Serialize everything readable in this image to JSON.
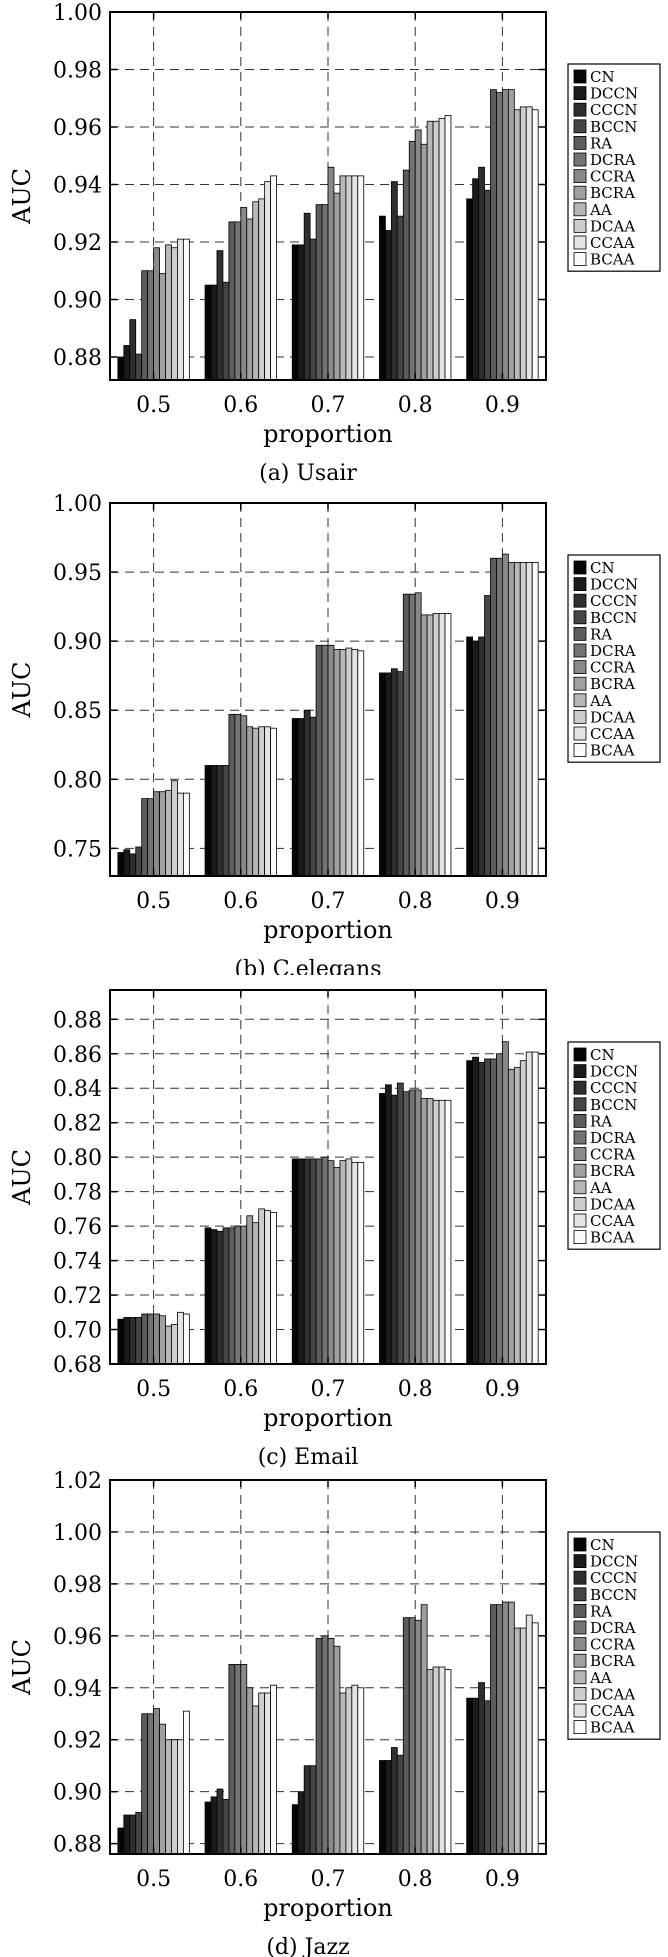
{
  "colors": {
    "series": [
      "#050505",
      "#1b1b1b",
      "#2f2f2f",
      "#454545",
      "#5c5c5c",
      "#737373",
      "#898989",
      "#a0a0a0",
      "#b7b7b7",
      "#cdcdcd",
      "#e4e4e4",
      "#fbfbfb"
    ],
    "axis": "#000000",
    "grid": "#333333"
  },
  "chart_data": [
    {
      "type": "bar",
      "caption": "(a) Usair",
      "xlabel": "proportion",
      "ylabel": "AUC",
      "categories": [
        "0.5",
        "0.6",
        "0.7",
        "0.8",
        "0.9"
      ],
      "ylim": [
        0.872,
        1.0
      ],
      "yticks": [
        0.88,
        0.9,
        0.92,
        0.94,
        0.96,
        0.98,
        1.0
      ],
      "ytick_labels": [
        "0.88",
        "0.90",
        "0.92",
        "0.94",
        "0.96",
        "0.98",
        "1.00"
      ],
      "grid": true,
      "legend_position": "right",
      "series": [
        {
          "name": "CN",
          "values": [
            0.88,
            0.905,
            0.919,
            0.929,
            0.935
          ]
        },
        {
          "name": "DCCN",
          "values": [
            0.884,
            0.905,
            0.919,
            0.924,
            0.942
          ]
        },
        {
          "name": "CCCN",
          "values": [
            0.893,
            0.917,
            0.93,
            0.941,
            0.946
          ]
        },
        {
          "name": "BCCN",
          "values": [
            0.881,
            0.906,
            0.921,
            0.929,
            0.938
          ]
        },
        {
          "name": "RA",
          "values": [
            0.91,
            0.927,
            0.933,
            0.945,
            0.973
          ]
        },
        {
          "name": "DCRA",
          "values": [
            0.91,
            0.927,
            0.933,
            0.955,
            0.972
          ]
        },
        {
          "name": "CCRA",
          "values": [
            0.918,
            0.932,
            0.946,
            0.959,
            0.973
          ]
        },
        {
          "name": "BCRA",
          "values": [
            0.909,
            0.928,
            0.937,
            0.954,
            0.973
          ]
        },
        {
          "name": "AA",
          "values": [
            0.919,
            0.934,
            0.943,
            0.962,
            0.966
          ]
        },
        {
          "name": "DCAA",
          "values": [
            0.918,
            0.935,
            0.943,
            0.962,
            0.967
          ]
        },
        {
          "name": "CCAA",
          "values": [
            0.921,
            0.941,
            0.943,
            0.963,
            0.967
          ]
        },
        {
          "name": "BCAA",
          "values": [
            0.921,
            0.943,
            0.943,
            0.964,
            0.966
          ]
        }
      ]
    },
    {
      "type": "bar",
      "caption": "(b) C.elegans",
      "xlabel": "proportion",
      "ylabel": "AUC",
      "categories": [
        "0.5",
        "0.6",
        "0.7",
        "0.8",
        "0.9"
      ],
      "ylim": [
        0.73,
        1.0
      ],
      "yticks": [
        0.75,
        0.8,
        0.85,
        0.9,
        0.95,
        1.0
      ],
      "ytick_labels": [
        "0.75",
        "0.80",
        "0.85",
        "0.90",
        "0.95",
        "1.00"
      ],
      "grid": true,
      "legend_position": "right",
      "series": [
        {
          "name": "CN",
          "values": [
            0.747,
            0.81,
            0.844,
            0.877,
            0.903
          ]
        },
        {
          "name": "DCCN",
          "values": [
            0.749,
            0.81,
            0.844,
            0.877,
            0.9
          ]
        },
        {
          "name": "CCCN",
          "values": [
            0.746,
            0.81,
            0.85,
            0.88,
            0.903
          ]
        },
        {
          "name": "BCCN",
          "values": [
            0.751,
            0.81,
            0.845,
            0.878,
            0.933
          ]
        },
        {
          "name": "RA",
          "values": [
            0.786,
            0.847,
            0.897,
            0.934,
            0.96
          ]
        },
        {
          "name": "DCRA",
          "values": [
            0.786,
            0.847,
            0.897,
            0.934,
            0.96
          ]
        },
        {
          "name": "CCRA",
          "values": [
            0.791,
            0.846,
            0.897,
            0.935,
            0.963
          ]
        },
        {
          "name": "BCRA",
          "values": [
            0.791,
            0.838,
            0.894,
            0.919,
            0.957
          ]
        },
        {
          "name": "AA",
          "values": [
            0.792,
            0.837,
            0.894,
            0.919,
            0.957
          ]
        },
        {
          "name": "DCAA",
          "values": [
            0.799,
            0.838,
            0.895,
            0.92,
            0.957
          ]
        },
        {
          "name": "CCAA",
          "values": [
            0.79,
            0.838,
            0.894,
            0.92,
            0.957
          ]
        },
        {
          "name": "BCAA",
          "values": [
            0.79,
            0.837,
            0.893,
            0.92,
            0.957
          ]
        }
      ]
    },
    {
      "type": "bar",
      "caption": "(c) Email",
      "xlabel": "proportion",
      "ylabel": "AUC",
      "categories": [
        "0.5",
        "0.6",
        "0.7",
        "0.8",
        "0.9"
      ],
      "ylim": [
        0.68,
        0.897
      ],
      "yticks": [
        0.68,
        0.7,
        0.72,
        0.74,
        0.76,
        0.78,
        0.8,
        0.82,
        0.84,
        0.86,
        0.88
      ],
      "ytick_labels": [
        "0.68",
        "0.70",
        "0.72",
        "0.74",
        "0.76",
        "0.78",
        "0.80",
        "0.82",
        "0.84",
        "0.86",
        "0.88"
      ],
      "grid": true,
      "legend_position": "right",
      "series": [
        {
          "name": "CN",
          "values": [
            0.706,
            0.759,
            0.799,
            0.837,
            0.856
          ]
        },
        {
          "name": "DCCN",
          "values": [
            0.707,
            0.758,
            0.799,
            0.842,
            0.858
          ]
        },
        {
          "name": "CCCN",
          "values": [
            0.707,
            0.757,
            0.799,
            0.836,
            0.855
          ]
        },
        {
          "name": "BCCN",
          "values": [
            0.707,
            0.759,
            0.799,
            0.843,
            0.857
          ]
        },
        {
          "name": "RA",
          "values": [
            0.709,
            0.759,
            0.799,
            0.838,
            0.857
          ]
        },
        {
          "name": "DCRA",
          "values": [
            0.709,
            0.76,
            0.8,
            0.839,
            0.86
          ]
        },
        {
          "name": "CCRA",
          "values": [
            0.709,
            0.76,
            0.798,
            0.839,
            0.867
          ]
        },
        {
          "name": "BCRA",
          "values": [
            0.708,
            0.766,
            0.794,
            0.834,
            0.851
          ]
        },
        {
          "name": "AA",
          "values": [
            0.702,
            0.762,
            0.798,
            0.834,
            0.852
          ]
        },
        {
          "name": "DCAA",
          "values": [
            0.703,
            0.77,
            0.799,
            0.833,
            0.856
          ]
        },
        {
          "name": "CCAA",
          "values": [
            0.71,
            0.769,
            0.797,
            0.833,
            0.861
          ]
        },
        {
          "name": "BCAA",
          "values": [
            0.709,
            0.768,
            0.797,
            0.833,
            0.861
          ]
        }
      ]
    },
    {
      "type": "bar",
      "caption": "(d) Jazz",
      "xlabel": "proportion",
      "ylabel": "AUC",
      "categories": [
        "0.5",
        "0.6",
        "0.7",
        "0.8",
        "0.9"
      ],
      "ylim": [
        0.876,
        1.02
      ],
      "yticks": [
        0.88,
        0.9,
        0.92,
        0.94,
        0.96,
        0.98,
        1.0,
        1.02
      ],
      "ytick_labels": [
        "0.88",
        "0.90",
        "0.92",
        "0.94",
        "0.96",
        "0.98",
        "1.00",
        "1.02"
      ],
      "grid": true,
      "legend_position": "right",
      "series": [
        {
          "name": "CN",
          "values": [
            0.886,
            0.896,
            0.895,
            0.912,
            0.936
          ]
        },
        {
          "name": "DCCN",
          "values": [
            0.891,
            0.898,
            0.9,
            0.912,
            0.936
          ]
        },
        {
          "name": "CCCN",
          "values": [
            0.891,
            0.901,
            0.91,
            0.917,
            0.942
          ]
        },
        {
          "name": "BCCN",
          "values": [
            0.892,
            0.897,
            0.91,
            0.914,
            0.935
          ]
        },
        {
          "name": "RA",
          "values": [
            0.93,
            0.949,
            0.959,
            0.967,
            0.972
          ]
        },
        {
          "name": "DCRA",
          "values": [
            0.93,
            0.949,
            0.96,
            0.967,
            0.972
          ]
        },
        {
          "name": "CCRA",
          "values": [
            0.932,
            0.949,
            0.959,
            0.966,
            0.973
          ]
        },
        {
          "name": "BCRA",
          "values": [
            0.926,
            0.94,
            0.956,
            0.972,
            0.973
          ]
        },
        {
          "name": "AA",
          "values": [
            0.92,
            0.933,
            0.938,
            0.947,
            0.963
          ]
        },
        {
          "name": "DCAA",
          "values": [
            0.92,
            0.938,
            0.94,
            0.948,
            0.963
          ]
        },
        {
          "name": "CCAA",
          "values": [
            0.92,
            0.938,
            0.941,
            0.948,
            0.968
          ]
        },
        {
          "name": "BCAA",
          "values": [
            0.931,
            0.941,
            0.94,
            0.947,
            0.965
          ]
        }
      ]
    }
  ]
}
